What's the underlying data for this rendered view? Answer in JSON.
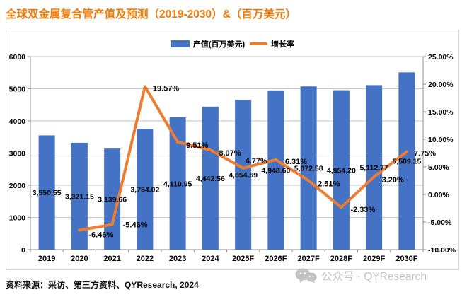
{
  "title": "全球双金属复合管产值及预测（2019-2030）&（百万美元）",
  "legend": {
    "bar_label": "产值(百万美元)",
    "line_label": "增长率"
  },
  "footer": {
    "source": "资料来源：采访、第三方资料、QYResearch, 2024",
    "watermark": "公众号 · QYResearch",
    "watermark_icon": "wechat-icon"
  },
  "colors": {
    "title": "#f07c0a",
    "bar": "#4472c4",
    "line": "#ed7d31",
    "grid": "#c6c6c6",
    "axis": "#8c8c8c",
    "label_text": "#000000",
    "watermark": "#c3c3c3",
    "border": "#d6d6d6"
  },
  "chart_data": {
    "type": "bar",
    "subtype": "combo-bar-line",
    "categories": [
      "2019",
      "2020",
      "2021",
      "2022",
      "2023",
      "2024",
      "2025F",
      "2026F",
      "2027F",
      "2028F",
      "2029F",
      "2030F"
    ],
    "series": [
      {
        "name": "产值(百万美元)",
        "type": "bar",
        "axis": "left",
        "values": [
          3550.55,
          3321.15,
          3139.66,
          3754.02,
          4110.95,
          4442.56,
          4654.69,
          4948.6,
          5072.58,
          4954.2,
          5112.77,
          5509.15
        ],
        "labels": [
          "3,550.55",
          "3,321.15",
          "3,139.66",
          "3,754.02",
          "4,110.95",
          "4,442.56",
          "4,654.69",
          "4,948.60",
          "5,072.58",
          "4,954.20",
          "5,112.77",
          "5,509.15"
        ]
      },
      {
        "name": "增长率",
        "type": "line",
        "axis": "right",
        "values": [
          null,
          -6.46,
          -5.46,
          19.57,
          9.51,
          8.07,
          4.77,
          6.31,
          2.51,
          -2.33,
          3.2,
          7.75
        ],
        "labels": [
          null,
          "-6.46%",
          "-5.46%",
          "19.57%",
          "9.51%",
          "8.07%",
          "4.77%",
          "6.31%",
          "2.51%",
          "-2.33%",
          "3.20%",
          "7.75%"
        ]
      }
    ],
    "left_axis": {
      "min": 0,
      "max": 6000,
      "step": 1000,
      "ticks": [
        "0",
        "1000",
        "2000",
        "3000",
        "4000",
        "5000",
        "6000"
      ]
    },
    "right_axis": {
      "min": -10,
      "max": 25,
      "step": 5,
      "ticks": [
        "-10.00%",
        "-5.00%",
        "0.00%",
        "5.00%",
        "10.00%",
        "15.00%",
        "20.00%",
        "25.00%"
      ]
    },
    "grid": true,
    "legend_position": "top-center"
  }
}
